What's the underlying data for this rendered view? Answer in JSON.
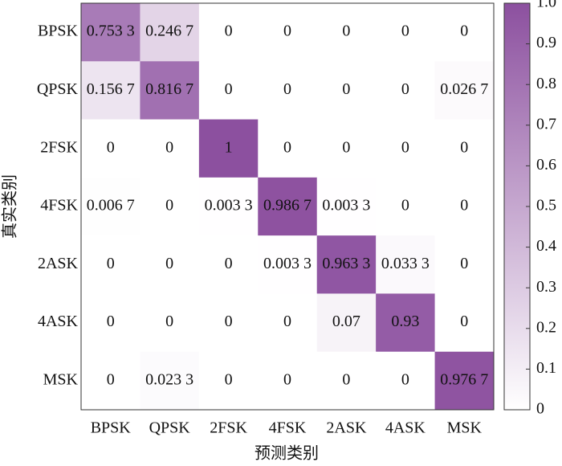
{
  "chart_data": {
    "type": "heatmap",
    "xlabel": "预测类别",
    "ylabel": "真实类别",
    "x_categories": [
      "BPSK",
      "QPSK",
      "2FSK",
      "4FSK",
      "2ASK",
      "4ASK",
      "MSK"
    ],
    "y_categories": [
      "BPSK",
      "QPSK",
      "2FSK",
      "4FSK",
      "2ASK",
      "4ASK",
      "MSK"
    ],
    "values": [
      [
        0.7533,
        0.2467,
        0,
        0,
        0,
        0,
        0
      ],
      [
        0.1567,
        0.8167,
        0,
        0,
        0,
        0,
        0.0267
      ],
      [
        0,
        0,
        1,
        0,
        0,
        0,
        0
      ],
      [
        0.0067,
        0,
        0.0033,
        0.9867,
        0.0033,
        0,
        0
      ],
      [
        0,
        0,
        0,
        0.0033,
        0.9633,
        0.0333,
        0
      ],
      [
        0,
        0,
        0,
        0,
        0.07,
        0.93,
        0
      ],
      [
        0,
        0.0233,
        0,
        0,
        0,
        0,
        0.9767
      ]
    ],
    "value_labels": [
      [
        "0.753 3",
        "0.246 7",
        "0",
        "0",
        "0",
        "0",
        "0"
      ],
      [
        "0.156 7",
        "0.816 7",
        "0",
        "0",
        "0",
        "0",
        "0.026 7"
      ],
      [
        "0",
        "0",
        "1",
        "0",
        "0",
        "0",
        "0"
      ],
      [
        "0.006 7",
        "0",
        "0.003 3",
        "0.986 7",
        "0.003 3",
        "0",
        "0"
      ],
      [
        "0",
        "0",
        "0",
        "0.003 3",
        "0.963 3",
        "0.033 3",
        "0"
      ],
      [
        "0",
        "0",
        "0",
        "0",
        "0.07",
        "0.93",
        "0"
      ],
      [
        "0",
        "0.023 3",
        "0",
        "0",
        "0",
        "0",
        "0.976 7"
      ]
    ],
    "colormap": [
      "#ffffff",
      "#8c509f"
    ],
    "clim": [
      0,
      1
    ],
    "cticks": [
      0,
      0.1,
      0.2,
      0.3,
      0.4,
      0.5,
      0.6,
      0.7,
      0.8,
      0.9,
      {
        "value": 1,
        "label": "1.0"
      }
    ]
  }
}
